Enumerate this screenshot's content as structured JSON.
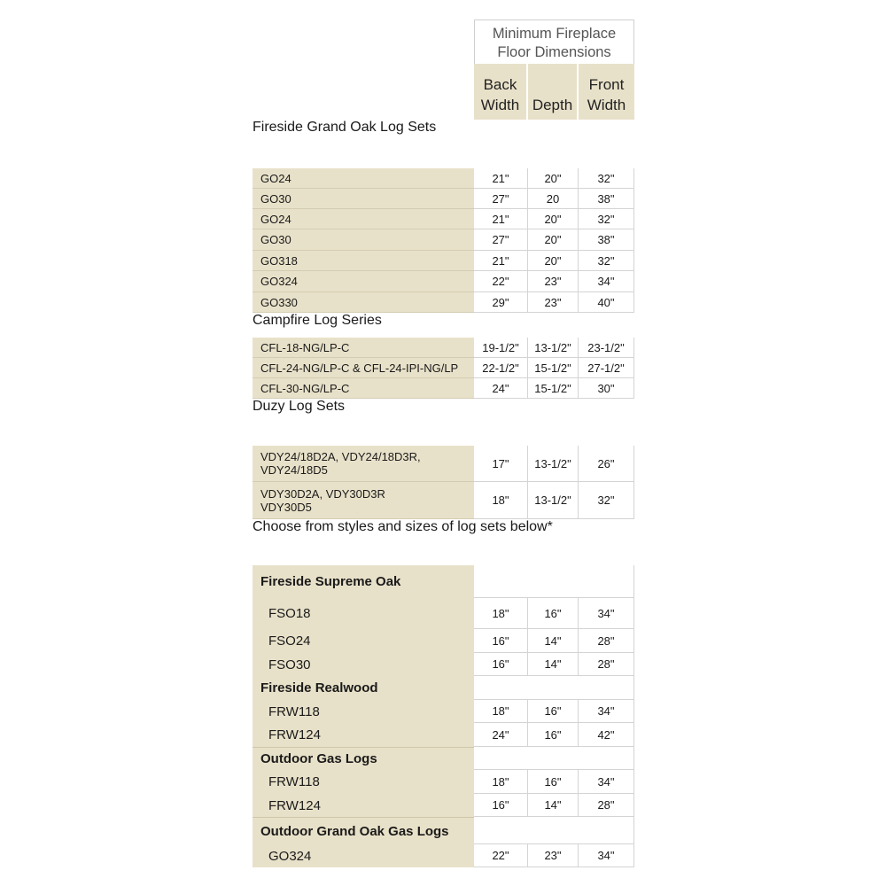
{
  "header": {
    "title": "Minimum Fireplace\nFloor Dimensions",
    "columns": [
      "Back\nWidth",
      "Depth",
      "Front\nWidth"
    ]
  },
  "colors": {
    "section_bg": "#a58f33",
    "label_bg": "#e8e1c9"
  },
  "rows": [
    {
      "type": "section",
      "label": "Fireside Grand Oak  Log Sets"
    },
    {
      "type": "item",
      "label": "GO24",
      "values": [
        "21\"",
        "20\"",
        "32\""
      ]
    },
    {
      "type": "item",
      "label": "GO30",
      "values": [
        "27\"",
        "20",
        "38\""
      ]
    },
    {
      "type": "item",
      "label": "GO24",
      "values": [
        "21\"",
        "20\"",
        "32\""
      ]
    },
    {
      "type": "item",
      "label": "GO30",
      "values": [
        "27\"",
        "20\"",
        "38\""
      ]
    },
    {
      "type": "item",
      "label": "GO318",
      "values": [
        "21\"",
        "20\"",
        "32\""
      ]
    },
    {
      "type": "item",
      "label": "GO324",
      "values": [
        "22\"",
        "23\"",
        "34\""
      ]
    },
    {
      "type": "item",
      "label": "GO330",
      "values": [
        "29\"",
        "23\"",
        "40\""
      ]
    },
    {
      "type": "section",
      "label": "Campfire Log Series"
    },
    {
      "type": "item",
      "label": "CFL-18-NG/LP-C",
      "values": [
        "19-1/2\"",
        "13-1/2\"",
        "23-1/2\""
      ]
    },
    {
      "type": "item",
      "label": "CFL-24-NG/LP-C & CFL-24-IPI-NG/LP",
      "values": [
        "22-1/2\"",
        "15-1/2\"",
        "27-1/2\""
      ]
    },
    {
      "type": "item",
      "label": "CFL-30-NG/LP-C",
      "values": [
        "24\"",
        "15-1/2\"",
        "30\""
      ]
    },
    {
      "type": "section",
      "label": "Duzy Log Sets"
    },
    {
      "type": "item",
      "label": "VDY24/18D2A, VDY24/18D3R,\nVDY24/18D5",
      "values": [
        "17\"",
        "13-1/2\"",
        "26\""
      ]
    },
    {
      "type": "item",
      "label": "VDY30D2A, VDY30D3R\nVDY30D5",
      "values": [
        "18\"",
        "13-1/2\"",
        "32\""
      ]
    },
    {
      "type": "section",
      "label": "Choose from styles and sizes of log sets below*"
    },
    {
      "type": "sub",
      "label": "Fireside Supreme Oak"
    },
    {
      "type": "big",
      "label": "FSO18",
      "values": [
        "18\"",
        "16\"",
        "34\""
      ]
    },
    {
      "type": "big",
      "label": "FSO24",
      "values": [
        "16\"",
        "14\"",
        "28\""
      ]
    },
    {
      "type": "big",
      "label": "FSO30",
      "values": [
        "16\"",
        "14\"",
        "28\""
      ]
    },
    {
      "type": "sub",
      "label": "Fireside Realwood"
    },
    {
      "type": "big",
      "label": "FRW118",
      "values": [
        "18\"",
        "16\"",
        "34\""
      ]
    },
    {
      "type": "big",
      "label": "FRW124",
      "values": [
        "24\"",
        "16\"",
        "42\""
      ]
    },
    {
      "type": "sub",
      "label": "Outdoor Gas Logs",
      "group": true
    },
    {
      "type": "big",
      "label": "FRW118",
      "values": [
        "18\"",
        "16\"",
        "34\""
      ]
    },
    {
      "type": "big",
      "label": "FRW124",
      "values": [
        "16\"",
        "14\"",
        "28\""
      ]
    },
    {
      "type": "sub",
      "label": "Outdoor Grand Oak Gas Logs",
      "group": true
    },
    {
      "type": "big",
      "label": "GO324",
      "values": [
        "22\"",
        "23\"",
        "34\""
      ]
    }
  ]
}
